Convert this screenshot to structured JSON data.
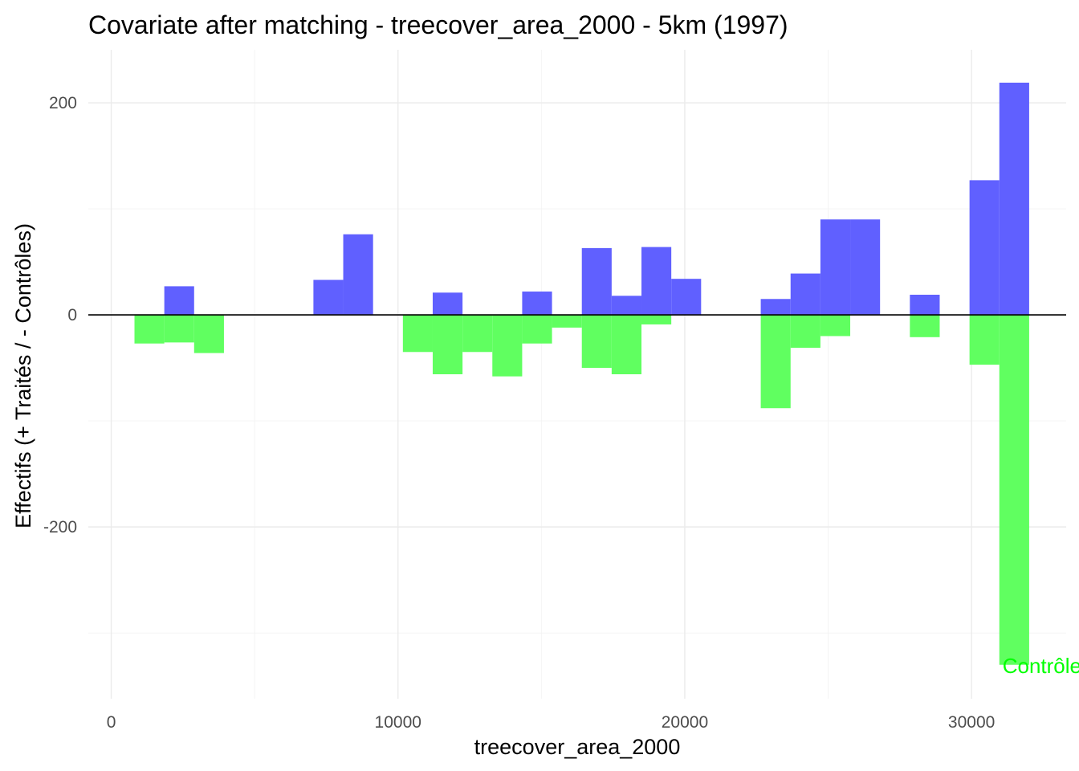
{
  "chart_data": {
    "type": "bar",
    "title": "Covariate after matching - treecover_area_2000 - 5km (1997)",
    "xlabel": "treecover_area_2000",
    "ylabel": "Effectifs (+ Traités / - Contrôles)",
    "xlim": [
      -800,
      33300
    ],
    "ylim": [
      -362,
      250
    ],
    "x_ticks": [
      0,
      10000,
      20000,
      30000
    ],
    "x_tick_labels": [
      "0",
      "10000",
      "20000",
      "30000"
    ],
    "y_ticks": [
      200,
      0,
      -200
    ],
    "y_tick_labels": [
      "200",
      "0",
      "-200"
    ],
    "bin_width": 1040,
    "series": [
      {
        "name": "Traités",
        "color": "#6060FF",
        "bins": [
          {
            "x0": 1850,
            "x1": 2890,
            "value": 27
          },
          {
            "x0": 7050,
            "x1": 8090,
            "value": 33
          },
          {
            "x0": 8090,
            "x1": 9130,
            "value": 76
          },
          {
            "x0": 11210,
            "x1": 12250,
            "value": 21
          },
          {
            "x0": 14330,
            "x1": 15370,
            "value": 22
          },
          {
            "x0": 16410,
            "x1": 17450,
            "value": 63
          },
          {
            "x0": 17450,
            "x1": 18490,
            "value": 18
          },
          {
            "x0": 18490,
            "x1": 19530,
            "value": 64
          },
          {
            "x0": 19530,
            "x1": 20570,
            "value": 34
          },
          {
            "x0": 22650,
            "x1": 23690,
            "value": 15
          },
          {
            "x0": 23690,
            "x1": 24730,
            "value": 39
          },
          {
            "x0": 24730,
            "x1": 25770,
            "value": 90
          },
          {
            "x0": 25770,
            "x1": 26810,
            "value": 90
          },
          {
            "x0": 27850,
            "x1": 28890,
            "value": 19
          },
          {
            "x0": 29930,
            "x1": 30970,
            "value": 127
          },
          {
            "x0": 30970,
            "x1": 32010,
            "value": 219
          }
        ]
      },
      {
        "name": "Contrôles",
        "color": "#60FF60",
        "bins": [
          {
            "x0": 810,
            "x1": 1850,
            "value": -27
          },
          {
            "x0": 1850,
            "x1": 2890,
            "value": -26
          },
          {
            "x0": 2890,
            "x1": 3930,
            "value": -36
          },
          {
            "x0": 10170,
            "x1": 11210,
            "value": -35
          },
          {
            "x0": 11210,
            "x1": 12250,
            "value": -56
          },
          {
            "x0": 12250,
            "x1": 13290,
            "value": -35
          },
          {
            "x0": 13290,
            "x1": 14330,
            "value": -58
          },
          {
            "x0": 14330,
            "x1": 15370,
            "value": -27
          },
          {
            "x0": 15370,
            "x1": 16410,
            "value": -12
          },
          {
            "x0": 16410,
            "x1": 17450,
            "value": -50
          },
          {
            "x0": 17450,
            "x1": 18490,
            "value": -56
          },
          {
            "x0": 18490,
            "x1": 19530,
            "value": -9
          },
          {
            "x0": 22650,
            "x1": 23690,
            "value": -88
          },
          {
            "x0": 23690,
            "x1": 24730,
            "value": -31
          },
          {
            "x0": 24730,
            "x1": 25770,
            "value": -20
          },
          {
            "x0": 27850,
            "x1": 28890,
            "value": -21
          },
          {
            "x0": 29930,
            "x1": 30970,
            "value": -47
          },
          {
            "x0": 30970,
            "x1": 32010,
            "value": -330
          }
        ]
      }
    ],
    "annotation": {
      "text": "Contrôles",
      "color": "#00FF00",
      "x": 31900,
      "y": -330
    },
    "zero_line": true,
    "grid": true,
    "legend": "none"
  }
}
